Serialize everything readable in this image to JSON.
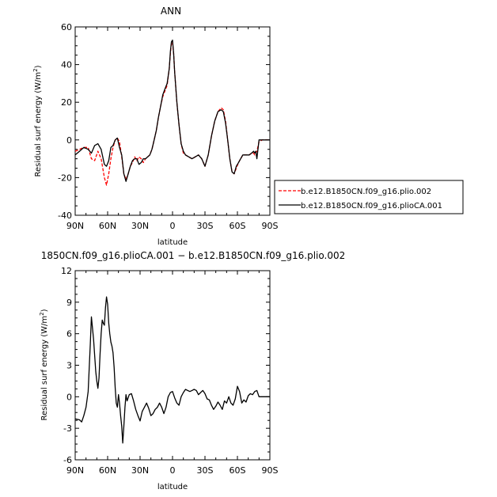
{
  "chart_data": [
    {
      "type": "line",
      "title": "ANN",
      "xlabel": "latitude",
      "ylabel_main": "Residual surf energy (W/m",
      "ylabel_sup": "2",
      "ylabel_close": ")",
      "xlim": [
        90,
        -90
      ],
      "ylim": [
        -40,
        60
      ],
      "xticks": [
        90,
        60,
        30,
        0,
        -30,
        -60,
        -90
      ],
      "xtick_labels": [
        "90N",
        "60N",
        "30N",
        "0",
        "30S",
        "60S",
        "90S"
      ],
      "yticks": [
        -40,
        -20,
        0,
        20,
        40,
        60
      ],
      "ytick_labels": [
        "-40",
        "-20",
        "0",
        "20",
        "40",
        "60"
      ],
      "legend_position": "right",
      "series": [
        {
          "name": "b.e12.B1850CN.f09_g16.plio.002",
          "color": "#ff0000",
          "dash": true,
          "x": [
            90,
            86,
            82,
            78,
            75,
            72,
            69,
            66,
            63,
            61,
            59,
            57,
            55,
            53,
            51,
            49,
            47,
            45,
            43,
            41,
            39,
            37,
            35,
            33,
            31,
            29,
            27,
            25,
            23,
            21,
            19,
            17,
            15,
            13,
            11,
            9,
            7,
            5,
            3,
            2,
            1,
            0,
            -1,
            -2,
            -4,
            -6,
            -8,
            -10,
            -12,
            -15,
            -18,
            -21,
            -24,
            -27,
            -30,
            -33,
            -36,
            -39,
            -42,
            -45,
            -47,
            -49,
            -51,
            -53,
            -55,
            -57,
            -59,
            -61,
            -63,
            -65,
            -67,
            -69,
            -71,
            -73,
            -75,
            -76,
            -77,
            -78,
            -80,
            -83,
            -86,
            -90
          ],
          "y": [
            -6,
            -5,
            -4,
            -4,
            -10,
            -11,
            -6,
            -10,
            -20,
            -24,
            -18,
            -10,
            -4,
            0,
            1,
            -1,
            -9,
            -18,
            -21,
            -18,
            -14,
            -12,
            -9,
            -11,
            -9,
            -10,
            -12,
            -10,
            -9,
            -8,
            -5,
            0,
            5,
            12,
            18,
            23,
            26,
            29,
            38,
            46,
            51,
            52,
            46,
            36,
            20,
            8,
            -2,
            -7,
            -8,
            -9,
            -10,
            -9,
            -8,
            -10,
            -14,
            -8,
            2,
            10,
            15,
            17,
            16,
            10,
            0,
            -10,
            -17,
            -18,
            -15,
            -12,
            -10,
            -8,
            -8,
            -8,
            -8,
            -7,
            -7,
            -8,
            -7,
            -6,
            -1,
            0,
            0,
            0
          ]
        },
        {
          "name": "b.e12.B1850CN.f09_g16.plioCA.001",
          "color": "#000000",
          "dash": false,
          "x": [
            90,
            86,
            82,
            78,
            75,
            72,
            69,
            66,
            63,
            61,
            59,
            57,
            55,
            53,
            51,
            49,
            47,
            45,
            43,
            41,
            39,
            37,
            35,
            33,
            31,
            29,
            27,
            25,
            23,
            21,
            19,
            17,
            15,
            13,
            11,
            9,
            7,
            5,
            3,
            2,
            1,
            0,
            -1,
            -2,
            -4,
            -6,
            -8,
            -10,
            -12,
            -15,
            -18,
            -21,
            -24,
            -27,
            -30,
            -33,
            -36,
            -39,
            -42,
            -45,
            -47,
            -49,
            -51,
            -53,
            -55,
            -57,
            -59,
            -61,
            -63,
            -65,
            -67,
            -69,
            -71,
            -73,
            -75,
            -76,
            -77,
            -78,
            -80,
            -83,
            -86,
            -90
          ],
          "y": [
            -8,
            -6,
            -4,
            -5,
            -7,
            -3,
            -2,
            -5,
            -13,
            -14,
            -11,
            -4,
            -3,
            0,
            1,
            -4,
            -8,
            -18,
            -22,
            -18,
            -14,
            -11,
            -10,
            -10,
            -13,
            -12,
            -10,
            -10,
            -9,
            -8,
            -5,
            0,
            5,
            12,
            18,
            24,
            27,
            30,
            38,
            47,
            52,
            53,
            46,
            36,
            20,
            8,
            -2,
            -6,
            -8,
            -9,
            -10,
            -9,
            -8,
            -10,
            -14,
            -8,
            2,
            10,
            15,
            16,
            15,
            9,
            0,
            -10,
            -17,
            -18,
            -14,
            -12,
            -10,
            -8,
            -8,
            -8,
            -8,
            -7,
            -6,
            -7,
            -6,
            -10,
            0,
            0,
            0,
            0
          ]
        }
      ]
    },
    {
      "type": "line",
      "title": "1850CN.f09_g16.plioCA.001 − b.e12.B1850CN.f09_g16.plio.002",
      "xlabel": "latitude",
      "ylabel_main": "Residual surf energy (W/m",
      "ylabel_sup": "2",
      "ylabel_close": ")",
      "xlim": [
        90,
        -90
      ],
      "ylim": [
        -6,
        12
      ],
      "xticks": [
        90,
        60,
        30,
        0,
        -30,
        -60,
        -90
      ],
      "xtick_labels": [
        "90N",
        "60N",
        "30N",
        "0",
        "30S",
        "60S",
        "90S"
      ],
      "yticks": [
        -6,
        -3,
        0,
        3,
        6,
        9,
        12
      ],
      "ytick_labels": [
        "-6",
        "-3",
        "0",
        "3",
        "6",
        "9",
        "12"
      ],
      "series": [
        {
          "color": "#000000",
          "dash": false,
          "x": [
            90,
            86,
            84,
            82,
            80,
            78,
            76,
            75,
            73,
            71,
            70,
            69,
            68,
            67,
            66,
            65,
            64,
            63,
            62,
            61,
            60,
            59,
            58,
            57,
            56,
            55,
            54,
            53,
            52,
            51,
            50,
            49,
            48,
            47,
            46,
            45,
            44,
            43,
            42,
            40,
            38,
            36,
            34,
            32,
            30,
            28,
            26,
            24,
            22,
            20,
            18,
            16,
            14,
            12,
            10,
            8,
            6,
            4,
            2,
            0,
            -2,
            -4,
            -6,
            -8,
            -10,
            -12,
            -14,
            -16,
            -18,
            -20,
            -22,
            -24,
            -26,
            -28,
            -30,
            -32,
            -34,
            -36,
            -38,
            -40,
            -42,
            -44,
            -46,
            -48,
            -50,
            -52,
            -54,
            -56,
            -58,
            -60,
            -62,
            -64,
            -66,
            -68,
            -70,
            -72,
            -74,
            -76,
            -78,
            -80,
            -83,
            -86,
            -90
          ],
          "y": [
            -2.1,
            -2.2,
            -2.4,
            -1.8,
            -1.0,
            0.5,
            5.0,
            7.6,
            5.5,
            2.4,
            1.5,
            0.8,
            1.8,
            4.0,
            6.0,
            7.3,
            7.0,
            6.8,
            8.5,
            9.5,
            8.8,
            7.0,
            6.0,
            5.2,
            4.8,
            4.2,
            2.8,
            0.8,
            -0.6,
            -1.0,
            0.2,
            -0.6,
            -1.8,
            -2.8,
            -4.4,
            -2.8,
            -1.0,
            0.2,
            -0.4,
            0.2,
            0.3,
            -0.4,
            -1.2,
            -1.8,
            -2.3,
            -1.4,
            -1.0,
            -0.6,
            -1.1,
            -1.8,
            -1.6,
            -1.2,
            -1.0,
            -0.6,
            -1.0,
            -1.6,
            -1.0,
            0.0,
            0.4,
            0.5,
            -0.1,
            -0.6,
            -0.8,
            0.0,
            0.4,
            0.7,
            0.6,
            0.5,
            0.6,
            0.7,
            0.6,
            0.2,
            0.4,
            0.6,
            0.3,
            -0.2,
            -0.3,
            -0.8,
            -1.2,
            -0.9,
            -0.5,
            -0.8,
            -1.2,
            -0.4,
            -0.6,
            0.0,
            -0.6,
            -0.8,
            -0.2,
            1.0,
            0.5,
            -0.6,
            -0.3,
            -0.5,
            0.1,
            0.3,
            0.2,
            0.5,
            0.6,
            0.0,
            0.0,
            0.0,
            0.0
          ]
        }
      ]
    }
  ]
}
